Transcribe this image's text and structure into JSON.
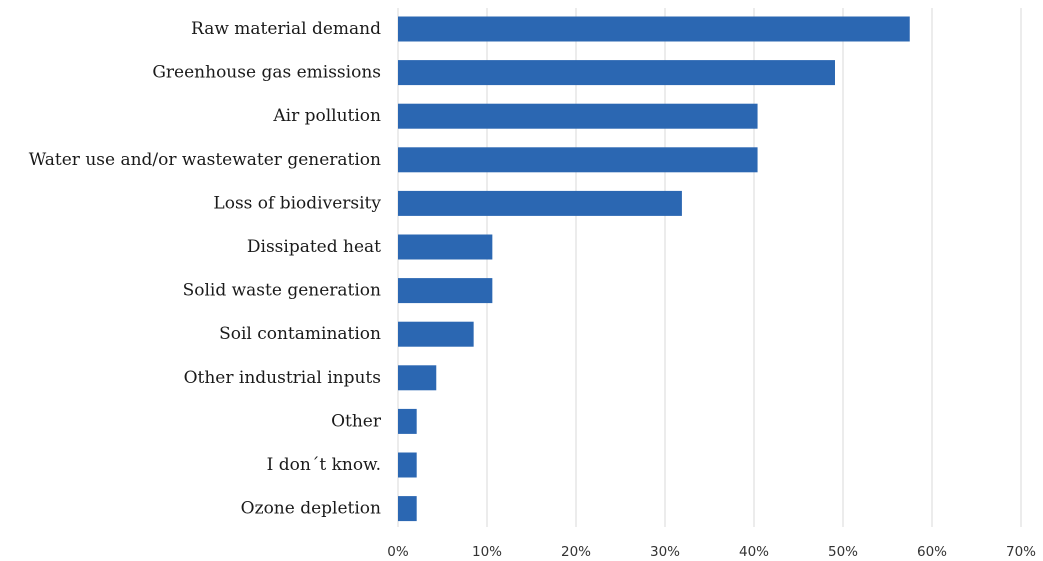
{
  "chart_data": {
    "type": "bar",
    "orientation": "horizontal",
    "title": "",
    "xlabel": "",
    "ylabel": "",
    "categories": [
      "Raw material demand",
      "Greenhouse gas emissions",
      "Air pollution",
      "Water use and/or wastewater generation",
      "Loss of biodiversity",
      "Dissipated heat",
      "Solid waste generation",
      "Soil contamination",
      "Other industrial inputs",
      "Other",
      "I don´t know.",
      "Ozone depletion"
    ],
    "values": [
      57.5,
      49.1,
      40.4,
      40.4,
      31.9,
      10.6,
      10.6,
      8.5,
      4.3,
      2.1,
      2.1,
      2.1
    ],
    "unit": "%",
    "xlim": [
      0,
      70
    ],
    "xticks": [
      "0%",
      "10%",
      "20%",
      "30%",
      "40%",
      "50%",
      "60%",
      "70%"
    ],
    "grid": "vertical gridlines on",
    "legend": "none",
    "colors": {
      "bar": "#2b67b2",
      "grid": "#d9d9d9",
      "label": "#1a1a1a",
      "tick": "#333333"
    }
  }
}
